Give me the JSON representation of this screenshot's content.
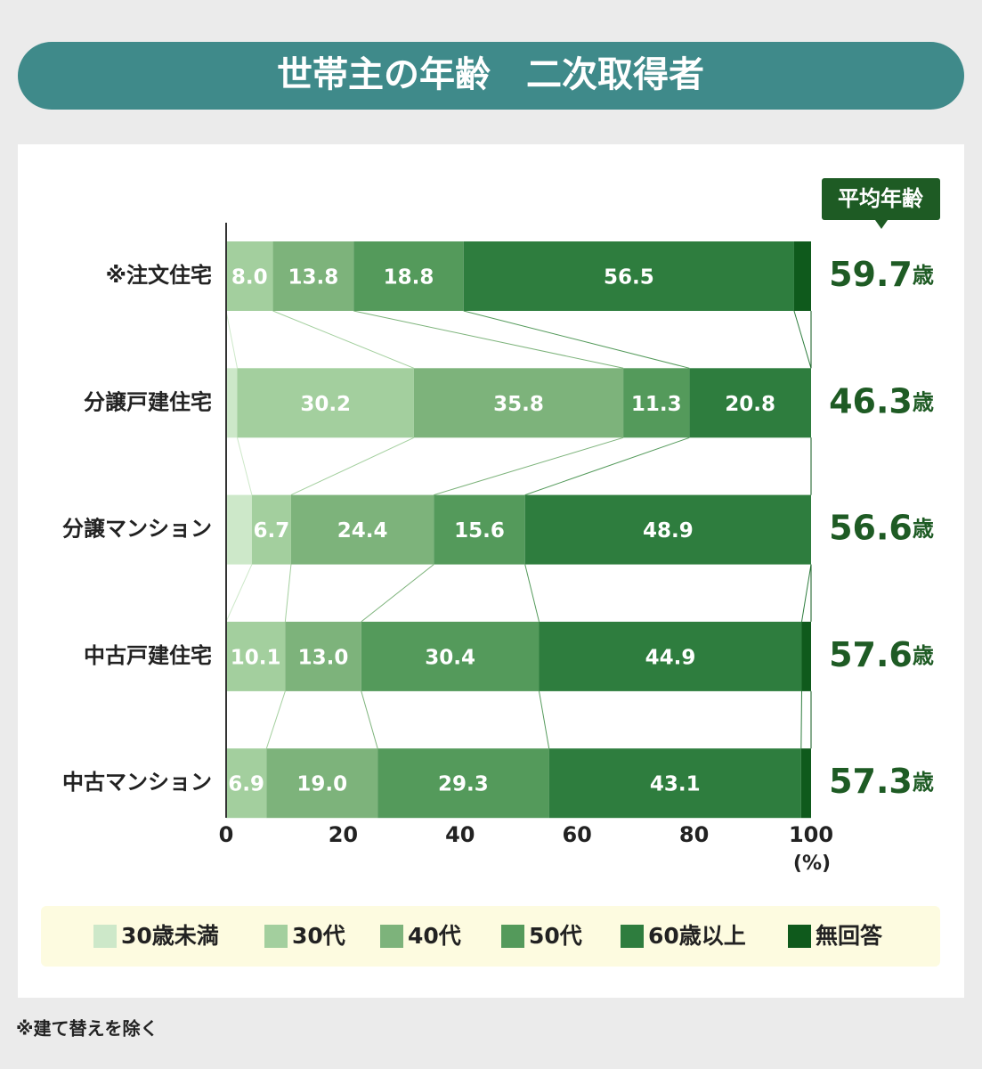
{
  "chart_data": {
    "type": "stacked-bar",
    "title": "世帯主の年齢　二次取得者",
    "categories": [
      "※注文住宅",
      "分譲戸建住宅",
      "分譲マンション",
      "中古戸建住宅",
      "中古マンション"
    ],
    "series": [
      {
        "name": "30歳未満",
        "color": "#cde8c9",
        "values": [
          0,
          1.9,
          4.4,
          0,
          0
        ],
        "value_labels": [
          null,
          null,
          null,
          null,
          null
        ]
      },
      {
        "name": "30代",
        "color": "#a3cf9e",
        "values": [
          8.0,
          30.2,
          6.7,
          10.1,
          6.9
        ],
        "value_labels": [
          "8.0",
          "30.2",
          "6.7",
          "10.1",
          "6.9"
        ]
      },
      {
        "name": "40代",
        "color": "#7db37b",
        "values": [
          13.8,
          35.8,
          24.4,
          13.0,
          19.0
        ],
        "value_labels": [
          "13.8",
          "35.8",
          "24.4",
          "13.0",
          "19.0"
        ]
      },
      {
        "name": "50代",
        "color": "#549a5b",
        "values": [
          18.8,
          11.3,
          15.6,
          30.4,
          29.3
        ],
        "value_labels": [
          "18.8",
          "11.3",
          "15.6",
          "30.4",
          "29.3"
        ]
      },
      {
        "name": "60歳以上",
        "color": "#2e7d3e",
        "values": [
          56.5,
          20.8,
          48.9,
          44.9,
          43.1
        ],
        "value_labels": [
          "56.5",
          "20.8",
          "48.9",
          "44.9",
          "43.1"
        ]
      },
      {
        "name": "無回答",
        "color": "#0f5a1c",
        "values": [
          2.9,
          0,
          0,
          1.6,
          1.7
        ],
        "value_labels": [
          null,
          null,
          null,
          null,
          null
        ]
      }
    ],
    "xlim": [
      0,
      100
    ],
    "xticks": [
      0,
      20,
      40,
      60,
      80,
      100
    ],
    "x_unit": "(%)",
    "average": {
      "title": "平均年齢",
      "values": [
        59.7,
        46.3,
        56.6,
        57.6,
        57.3
      ],
      "unit": "歳"
    },
    "footnote": "※建て替えを除く"
  }
}
